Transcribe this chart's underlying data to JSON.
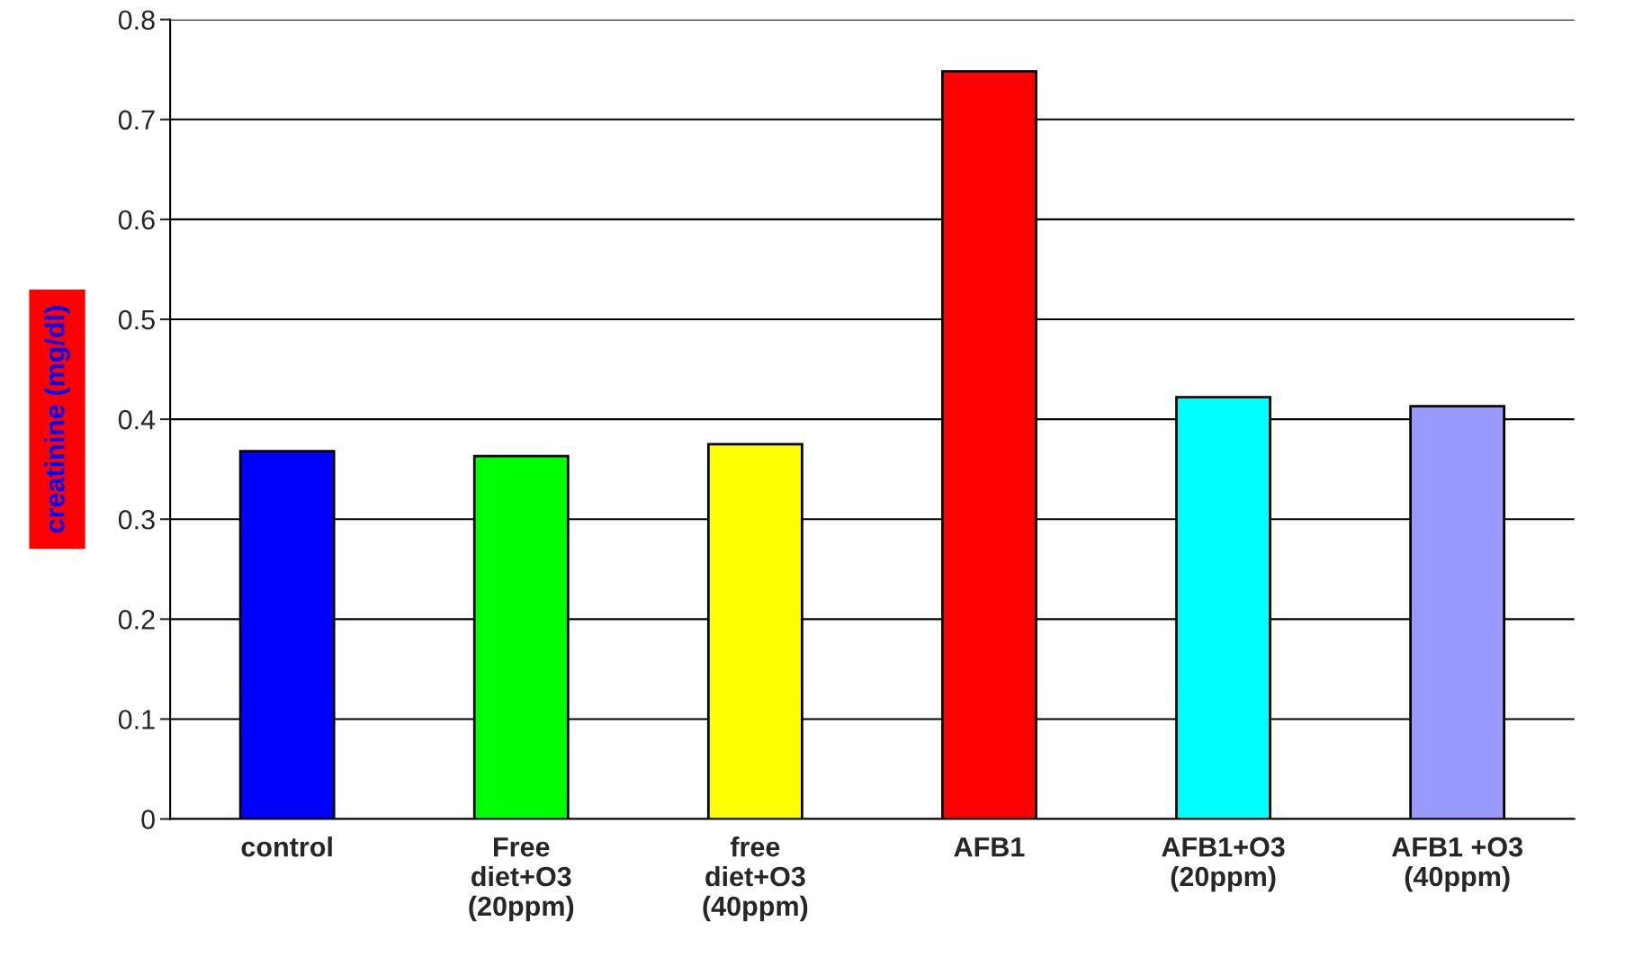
{
  "chart_data": {
    "type": "bar",
    "ylabel": "creatinine (mg/dl)",
    "categories": [
      "control",
      "Free\ndiet+O3\n(20ppm)",
      "free\ndiet+O3\n(40ppm)",
      "AFB1",
      "AFB1+O3\n(20ppm)",
      "AFB1 +O3\n(40ppm)"
    ],
    "values": [
      0.368,
      0.363,
      0.375,
      0.748,
      0.422,
      0.413
    ],
    "colors": [
      "#0000ff",
      "#00ff00",
      "#ffff00",
      "#ff0000",
      "#00ffff",
      "#9999ff"
    ],
    "ylim": [
      0,
      0.8
    ],
    "yticks": [
      0,
      0.1,
      0.2,
      0.3,
      0.4,
      0.5,
      0.6,
      0.7,
      0.8
    ],
    "grid": "y"
  }
}
